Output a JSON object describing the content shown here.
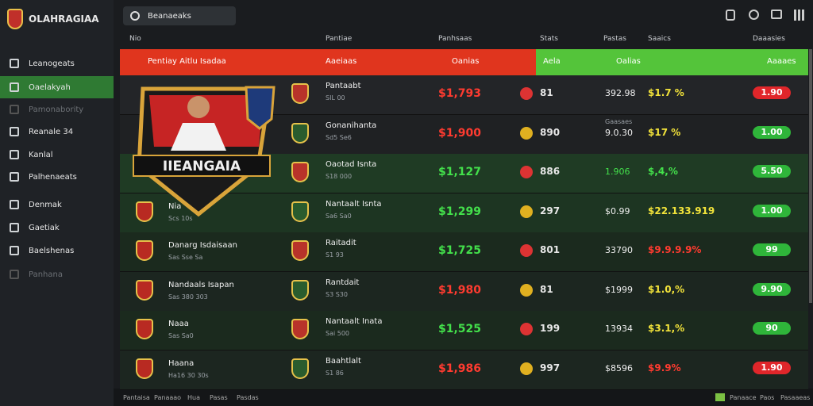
{
  "brand": "OLAHRAGIAA",
  "search": "Beanaeaks",
  "nav": [
    {
      "label": "Leanogeats",
      "state": "normal"
    },
    {
      "label": "Oaelakyah",
      "state": "active"
    },
    {
      "label": "Pamonabority",
      "state": "dim"
    },
    {
      "label": "Reanale 34",
      "state": "normal"
    },
    {
      "label": "Kanlal",
      "state": "normal"
    },
    {
      "label": "Palhenaeats",
      "state": "normal"
    },
    {
      "label": "Denmak",
      "state": "normal"
    },
    {
      "label": "Gaetiak",
      "state": "normal"
    },
    {
      "label": "Baelshenas",
      "state": "normal"
    },
    {
      "label": "Panhana",
      "state": "dim"
    }
  ],
  "columns": [
    "Nio",
    "Pantiae",
    "Panhsaas",
    "Stats",
    "Pastas",
    "Saaics",
    "Daaasies"
  ],
  "banner": {
    "title": "Pentiay Aitlu Isadaa",
    "team": "Aaeiaas",
    "price": "Oanias",
    "count": "Aela",
    "value": "Oalias",
    "badge": "Aaaaes"
  },
  "emblem": "IIEANGAIA",
  "rows": [
    {
      "team": "",
      "sub": "",
      "opponent": "Pantaabt",
      "opp_sub": "SIL 00",
      "price": "$1,793",
      "price_color": "#ff3b30",
      "count": "81",
      "note": "",
      "value": "392.98",
      "pct": "$1.7 %",
      "pct_color": "#f2e33a",
      "badge": "1.90",
      "badge_color": "#e0262a"
    },
    {
      "team": "",
      "sub": "",
      "opponent": "Gonanihanta",
      "opp_sub": "Sd5 Se6",
      "price": "$1,900",
      "price_color": "#ff3b30",
      "count": "890",
      "note": "Gaasaes",
      "value": "9.0.30",
      "pct": "$17 %",
      "pct_color": "#f2e33a",
      "badge": "1.00",
      "badge_color": "#2fb53a"
    },
    {
      "team": "",
      "sub": "",
      "opponent": "Oaotad Isnta",
      "opp_sub": "S18 000",
      "price": "$1,127",
      "price_color": "#43e04b",
      "count": "886",
      "note": "",
      "value": "1.906",
      "pct": "$,4,%",
      "pct_color": "#43e04b",
      "badge": "5.50",
      "badge_color": "#2fb53a"
    },
    {
      "team": "Nia",
      "sub": "Scs 10s",
      "opponent": "Nantaalt Isnta",
      "opp_sub": "Sa6 Sa0",
      "price": "$1,299",
      "price_color": "#43e04b",
      "count": "297",
      "note": "",
      "value": "$0.99",
      "pct": "$22.133.919",
      "pct_color": "#f2e33a",
      "badge": "1.00",
      "badge_color": "#2fb53a"
    },
    {
      "team": "Danarg Isdaisaan",
      "sub": "Sas Sse Sa",
      "opponent": "Raitadit",
      "opp_sub": "S1 93",
      "price": "$1,725",
      "price_color": "#43e04b",
      "count": "801",
      "note": "",
      "value": "33790",
      "pct": "$9.9.9.9%",
      "pct_color": "#ff3b30",
      "badge": "99",
      "badge_color": "#2fb53a"
    },
    {
      "team": "Nandaals Isapan",
      "sub": "Sas 380 303",
      "opponent": "Rantdait",
      "opp_sub": "S3 S30",
      "price": "$1,980",
      "price_color": "#ff3b30",
      "count": "81",
      "note": "",
      "value": "$1999",
      "pct": "$1.0,%",
      "pct_color": "#f2e33a",
      "badge": "9.90",
      "badge_color": "#2fb53a"
    },
    {
      "team": "Naaa",
      "sub": "Sas Sa0",
      "opponent": "Nantaalt Inata",
      "opp_sub": "Sai 500",
      "price": "$1,525",
      "price_color": "#43e04b",
      "count": "199",
      "note": "",
      "value": "13934",
      "pct": "$3.1,%",
      "pct_color": "#f2e33a",
      "badge": "90",
      "badge_color": "#2fb53a"
    },
    {
      "team": "Haana",
      "sub": "Ha16 30 30s",
      "opponent": "Baahtlalt",
      "opp_sub": "S1 86",
      "price": "$1,986",
      "price_color": "#ff3b30",
      "count": "997",
      "note": "",
      "value": "$8596",
      "pct": "$9.9%",
      "pct_color": "#ff3b30",
      "badge": "1.90",
      "badge_color": "#e0262a"
    }
  ],
  "footer": {
    "left": [
      "Pantaisa",
      "Panaaao",
      "Hua",
      "Pasas",
      "Pasdas"
    ],
    "right": [
      "Panaace",
      "Paos",
      "Pasaaeas"
    ]
  }
}
